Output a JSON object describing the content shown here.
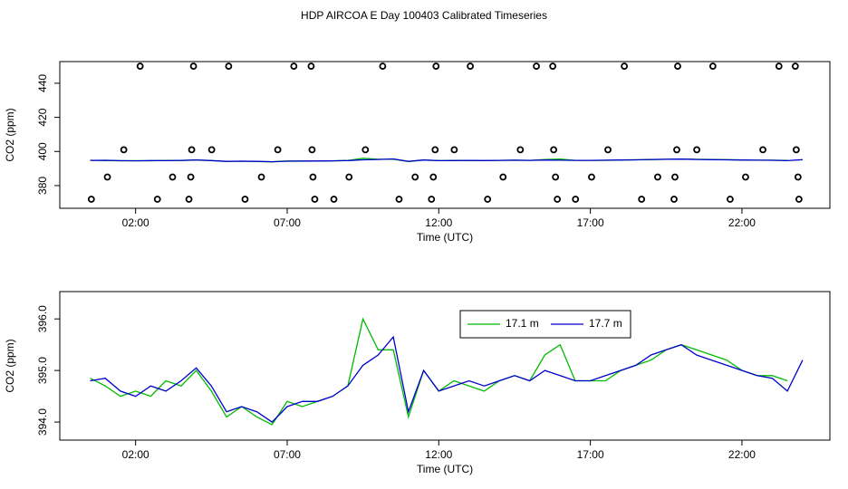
{
  "title": "HDP AIRCOA E  Day 100403  Calibrated Timeseries",
  "chart_data": [
    {
      "type": "scatter",
      "x_label": "Time (UTC)",
      "y_label": "CO2 (ppm)",
      "x": [
        2.15,
        3.91,
        5.07,
        7.22,
        7.79,
        10.15,
        11.91,
        13.04,
        15.22,
        15.76,
        18.12,
        19.88,
        21.04,
        23.22,
        23.76,
        1.61,
        3.85,
        4.51,
        6.69,
        7.82,
        9.58,
        11.88,
        12.51,
        14.69,
        15.79,
        17.58,
        19.85,
        20.51,
        22.69,
        23.79,
        1.07,
        3.22,
        3.82,
        6.15,
        7.85,
        9.04,
        11.22,
        11.82,
        14.12,
        15.85,
        17.04,
        19.22,
        19.79,
        22.12,
        23.85,
        0.54,
        2.72,
        3.76,
        5.61,
        7.91,
        8.54,
        10.69,
        11.76,
        13.61,
        15.91,
        16.51,
        18.69,
        19.76,
        21.61,
        23.88
      ],
      "y": [
        450,
        450,
        450,
        450,
        450,
        450,
        450,
        450,
        450,
        450,
        450,
        450,
        450,
        450,
        450,
        401,
        401,
        401,
        401,
        401,
        401,
        401,
        401,
        401,
        401,
        401,
        401,
        401,
        401,
        401,
        385,
        385,
        385,
        385,
        385,
        385,
        385,
        385,
        385,
        385,
        385,
        385,
        385,
        385,
        385,
        372,
        372,
        372,
        372,
        372,
        372,
        372,
        372,
        372,
        372,
        372,
        372,
        372,
        372,
        372
      ],
      "color": "#000000",
      "xlim": [
        -0.5,
        24.9
      ],
      "ylim": [
        366.7,
        452.7
      ],
      "xticks": [
        {
          "value": 2,
          "label": "02:00"
        },
        {
          "value": 7,
          "label": "07:00"
        },
        {
          "value": 12,
          "label": "12:00"
        },
        {
          "value": 17,
          "label": "17:00"
        },
        {
          "value": 22,
          "label": "22:00"
        }
      ],
      "yticks": [
        380,
        400,
        420,
        440
      ]
    },
    {
      "type": "line",
      "x_label": "Time (UTC)",
      "y_label": "CO2 (ppm)",
      "x": [
        0.5,
        1.0,
        1.5,
        2.0,
        2.5,
        3.0,
        3.5,
        4.0,
        4.5,
        5.0,
        5.5,
        6.0,
        6.5,
        7.0,
        7.5,
        8.0,
        8.5,
        9.0,
        9.5,
        10.0,
        10.5,
        11.0,
        11.5,
        12.0,
        12.5,
        13.0,
        13.5,
        14.0,
        14.5,
        15.0,
        15.5,
        16.0,
        16.5,
        17.0,
        17.5,
        18.0,
        18.5,
        19.0,
        19.5,
        20.0,
        20.5,
        21.0,
        21.5,
        22.0,
        22.5,
        23.0,
        23.5,
        24.0
      ],
      "series": [
        {
          "name": "17.1 m",
          "color": "#00bb00",
          "values": [
            394.85,
            394.7,
            394.5,
            394.6,
            394.5,
            394.8,
            394.7,
            395.0,
            394.6,
            394.1,
            394.3,
            394.1,
            393.95,
            394.4,
            394.3,
            394.4,
            394.5,
            394.7,
            396.0,
            395.4,
            395.4,
            394.1,
            395.0,
            394.6,
            394.8,
            394.7,
            394.6,
            394.8,
            394.9,
            394.8,
            395.3,
            395.5,
            394.8,
            394.8,
            394.8,
            395.0,
            395.1,
            395.2,
            395.4,
            395.5,
            395.4,
            395.3,
            395.2,
            395.0,
            394.9,
            394.9,
            394.8,
            null
          ]
        },
        {
          "name": "17.7 m",
          "color": "#0000cc",
          "values": [
            394.8,
            394.85,
            394.6,
            394.5,
            394.7,
            394.6,
            394.8,
            395.05,
            394.7,
            394.2,
            394.3,
            394.2,
            394.0,
            394.3,
            394.4,
            394.4,
            394.5,
            394.7,
            395.1,
            395.3,
            395.65,
            394.2,
            395.0,
            394.6,
            394.7,
            394.8,
            394.7,
            394.8,
            394.9,
            394.8,
            395.0,
            394.9,
            394.8,
            394.8,
            394.9,
            395.0,
            395.1,
            395.3,
            395.4,
            395.5,
            395.3,
            395.2,
            395.1,
            395.0,
            394.9,
            394.85,
            394.6,
            395.2
          ]
        }
      ],
      "legend": "top",
      "xlim": [
        -0.5,
        24.9
      ],
      "ylim": [
        393.65,
        396.53
      ],
      "xticks": [
        {
          "value": 2,
          "label": "02:00"
        },
        {
          "value": 7,
          "label": "07:00"
        },
        {
          "value": 12,
          "label": "12:00"
        },
        {
          "value": 17,
          "label": "17:00"
        },
        {
          "value": 22,
          "label": "22:00"
        }
      ],
      "yticks": [
        {
          "value": 394,
          "label": "394.0"
        },
        {
          "value": 395,
          "label": "395.0"
        },
        {
          "value": 396,
          "label": "396.0"
        }
      ]
    }
  ]
}
